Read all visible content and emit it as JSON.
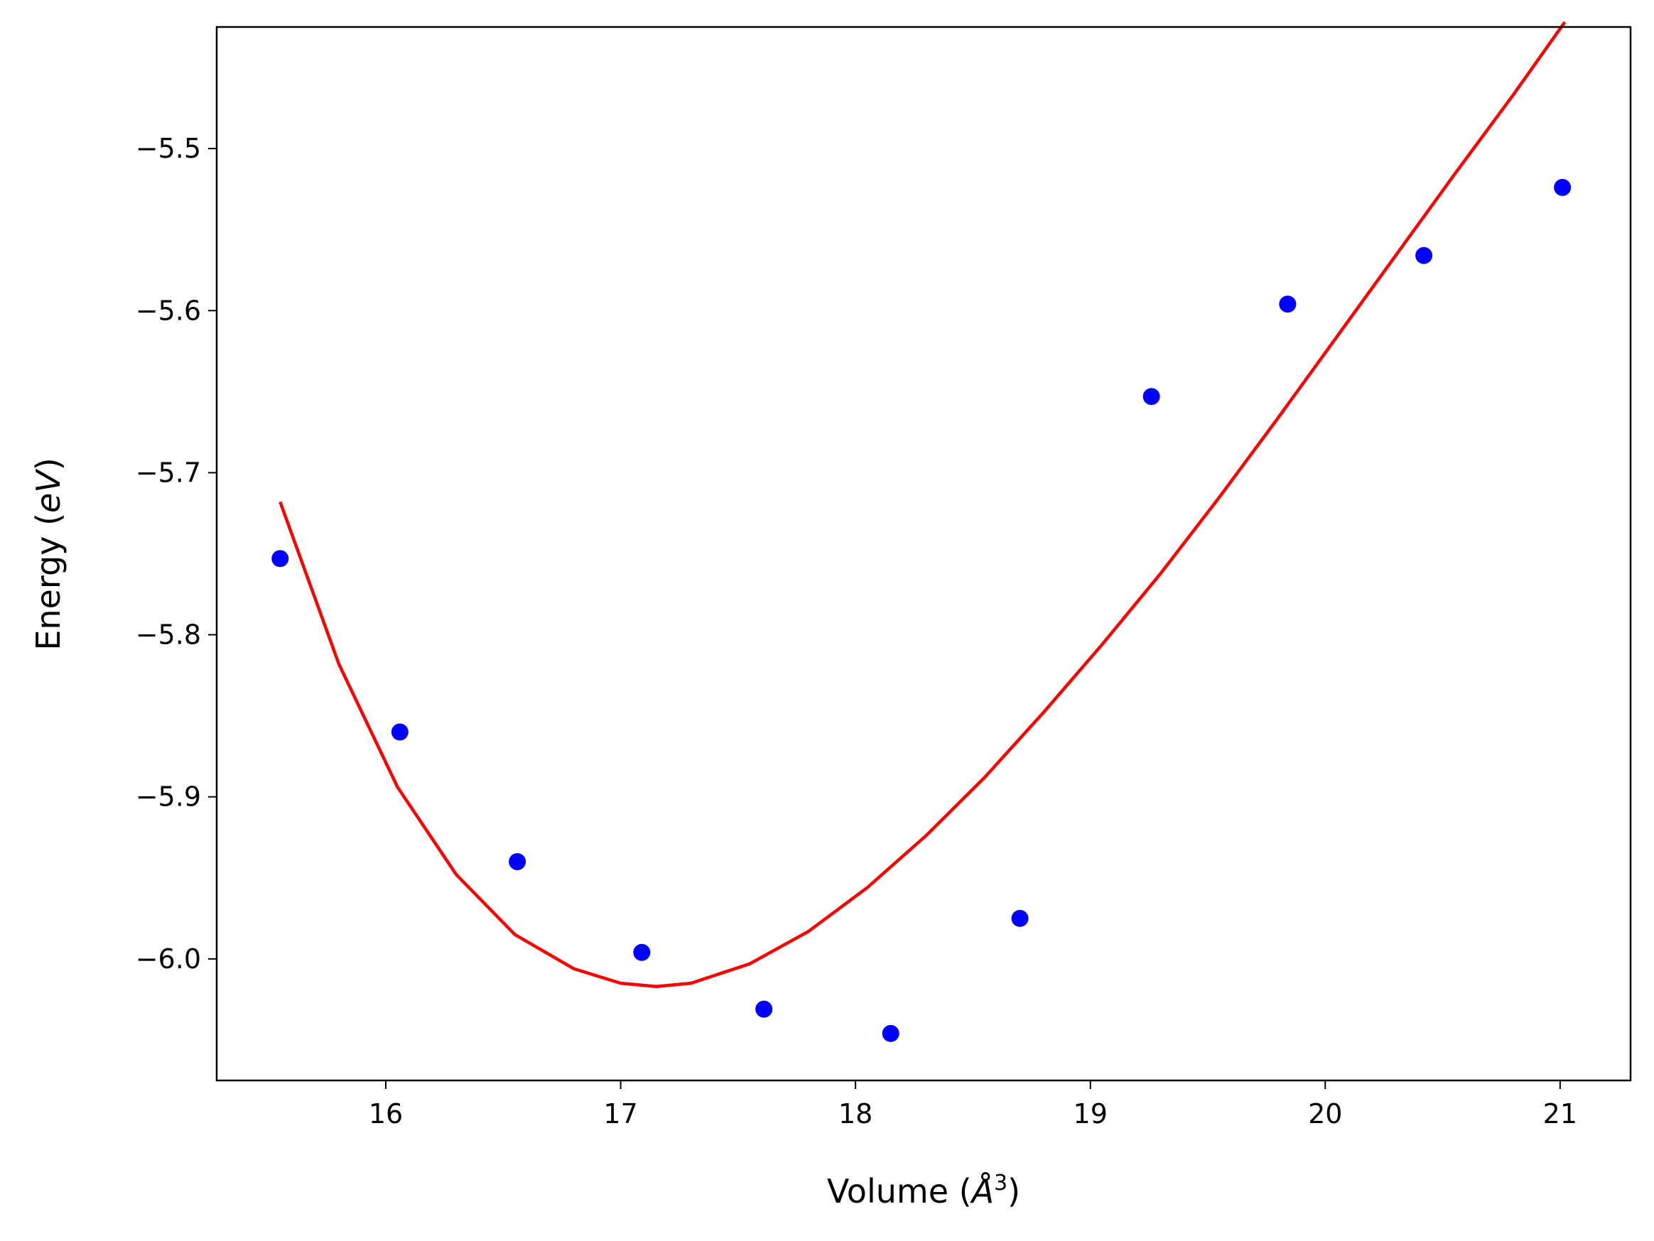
{
  "chart_data": {
    "type": "scatter",
    "title": "",
    "xlabel": "Volume (Å³)",
    "ylabel": "Energy (eV)",
    "xlabel_parts": {
      "prefix": "Volume (",
      "unit_base": "Å",
      "unit_exp": "3",
      "suffix": ")"
    },
    "ylabel_parts": {
      "prefix": "Energy (",
      "unit": "eV",
      "suffix": ")"
    },
    "xlim": [
      15.28,
      21.3
    ],
    "ylim": [
      -6.075,
      -5.425
    ],
    "xticks": [
      16,
      17,
      18,
      19,
      20,
      21
    ],
    "xtick_labels": [
      "16",
      "17",
      "18",
      "19",
      "20",
      "21"
    ],
    "yticks": [
      -6.0,
      -5.9,
      -5.8,
      -5.7,
      -5.6,
      -5.5
    ],
    "ytick_labels": [
      "−6.0",
      "−5.9",
      "−5.8",
      "−5.7",
      "−5.6",
      "−5.5"
    ],
    "grid": false,
    "series": [
      {
        "kind": "scatter",
        "color": "#0000ff",
        "x": [
          15.55,
          16.06,
          16.56,
          17.09,
          17.61,
          18.15,
          18.7,
          19.26,
          19.84,
          20.42,
          21.01
        ],
        "y": [
          -5.753,
          -5.86,
          -5.94,
          -5.996,
          -6.031,
          -6.046,
          -5.975,
          -5.653,
          -5.596,
          -5.566,
          -5.524
        ]
      },
      {
        "kind": "line",
        "color": "#ff0000",
        "x": [
          15.55,
          15.8,
          16.05,
          16.3,
          16.55,
          16.8,
          17.0,
          17.15,
          17.3,
          17.55,
          17.8,
          18.05,
          18.3,
          18.55,
          18.8,
          19.05,
          19.3,
          19.55,
          19.8,
          20.05,
          20.3,
          20.55,
          20.8,
          21.02
        ],
        "y": [
          -5.718,
          -5.818,
          -5.894,
          -5.948,
          -5.985,
          -6.006,
          -6.015,
          -6.017,
          -6.015,
          -6.003,
          -5.983,
          -5.956,
          -5.924,
          -5.888,
          -5.848,
          -5.806,
          -5.762,
          -5.715,
          -5.666,
          -5.616,
          -5.566,
          -5.516,
          -5.467,
          -5.422
        ]
      }
    ]
  }
}
